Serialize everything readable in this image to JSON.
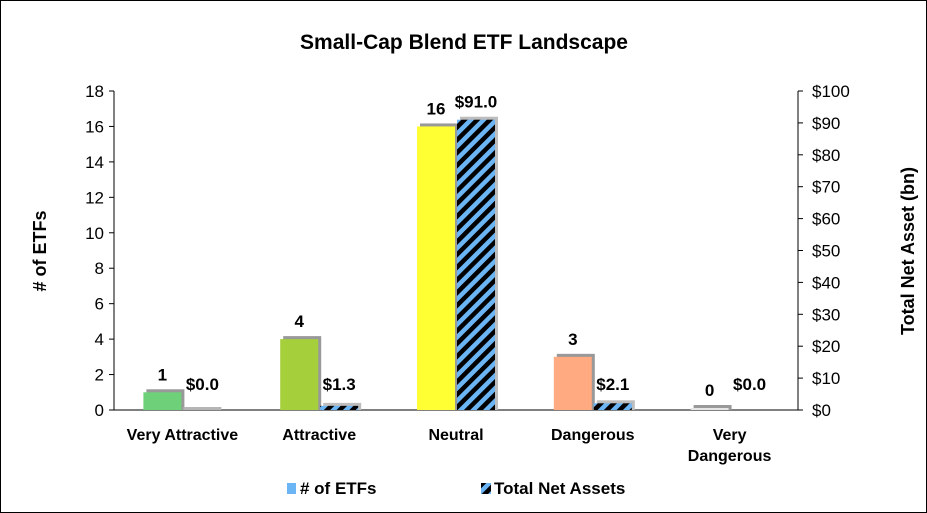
{
  "chart_data": {
    "type": "bar",
    "title": "Small-Cap Blend ETF Landscape",
    "categories": [
      "Very Attractive",
      "Attractive",
      "Neutral",
      "Dangerous",
      "Very Dangerous"
    ],
    "category_lines": [
      [
        "Very Attractive"
      ],
      [
        "Attractive"
      ],
      [
        "Neutral"
      ],
      [
        "Dangerous"
      ],
      [
        "Very",
        "Dangerous"
      ]
    ],
    "series": [
      {
        "name": "# of ETFs",
        "axis": "left",
        "values": [
          1,
          4,
          16,
          3,
          0
        ],
        "labels": [
          "1",
          "4",
          "16",
          "3",
          "0"
        ],
        "colors": [
          "#6fd07a",
          "#a6cf3c",
          "#ffff33",
          "#ffaa80",
          "#e6e6e6"
        ]
      },
      {
        "name": "Total Net Assets",
        "axis": "right",
        "values": [
          0.0,
          1.3,
          91.0,
          2.1,
          0.0
        ],
        "labels": [
          "$0.0",
          "$1.3",
          "$91.0",
          "$2.1",
          "$0.0"
        ],
        "pattern": "diagonal stripes",
        "colors": [
          "#000000",
          "#6bb5f5"
        ]
      }
    ],
    "left_axis": {
      "label": "# of ETFs",
      "range": [
        0,
        18
      ],
      "ticks": [
        "0",
        "2",
        "4",
        "6",
        "8",
        "10",
        "12",
        "14",
        "16",
        "18"
      ]
    },
    "right_axis": {
      "label": "Total Net Asset (bn)",
      "range": [
        0,
        100
      ],
      "ticks": [
        "$0",
        "$10",
        "$20",
        "$30",
        "$40",
        "$50",
        "$60",
        "$70",
        "$80",
        "$90",
        "$100"
      ]
    },
    "legend": {
      "position": "bottom",
      "items": [
        "# of ETFs",
        "Total Net Assets"
      ],
      "swatch_color": "#6bb5f5"
    },
    "grid": false
  }
}
